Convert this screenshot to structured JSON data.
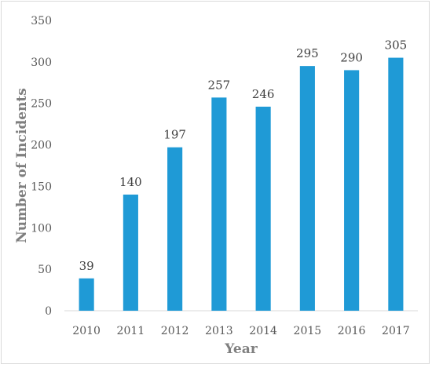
{
  "chart_data": {
    "type": "bar",
    "xlabel": "Year",
    "ylabel": "Number of Incidents",
    "categories": [
      "2010",
      "2011",
      "2012",
      "2013",
      "2014",
      "2015",
      "2016",
      "2017"
    ],
    "values": [
      39,
      140,
      197,
      257,
      246,
      295,
      290,
      305
    ],
    "ylim": [
      0,
      350
    ],
    "yticks": [
      0,
      50,
      100,
      150,
      200,
      250,
      300,
      350
    ],
    "grid": false,
    "legend": "none",
    "bar_color": "#1f9ad6",
    "data_labels": true
  }
}
